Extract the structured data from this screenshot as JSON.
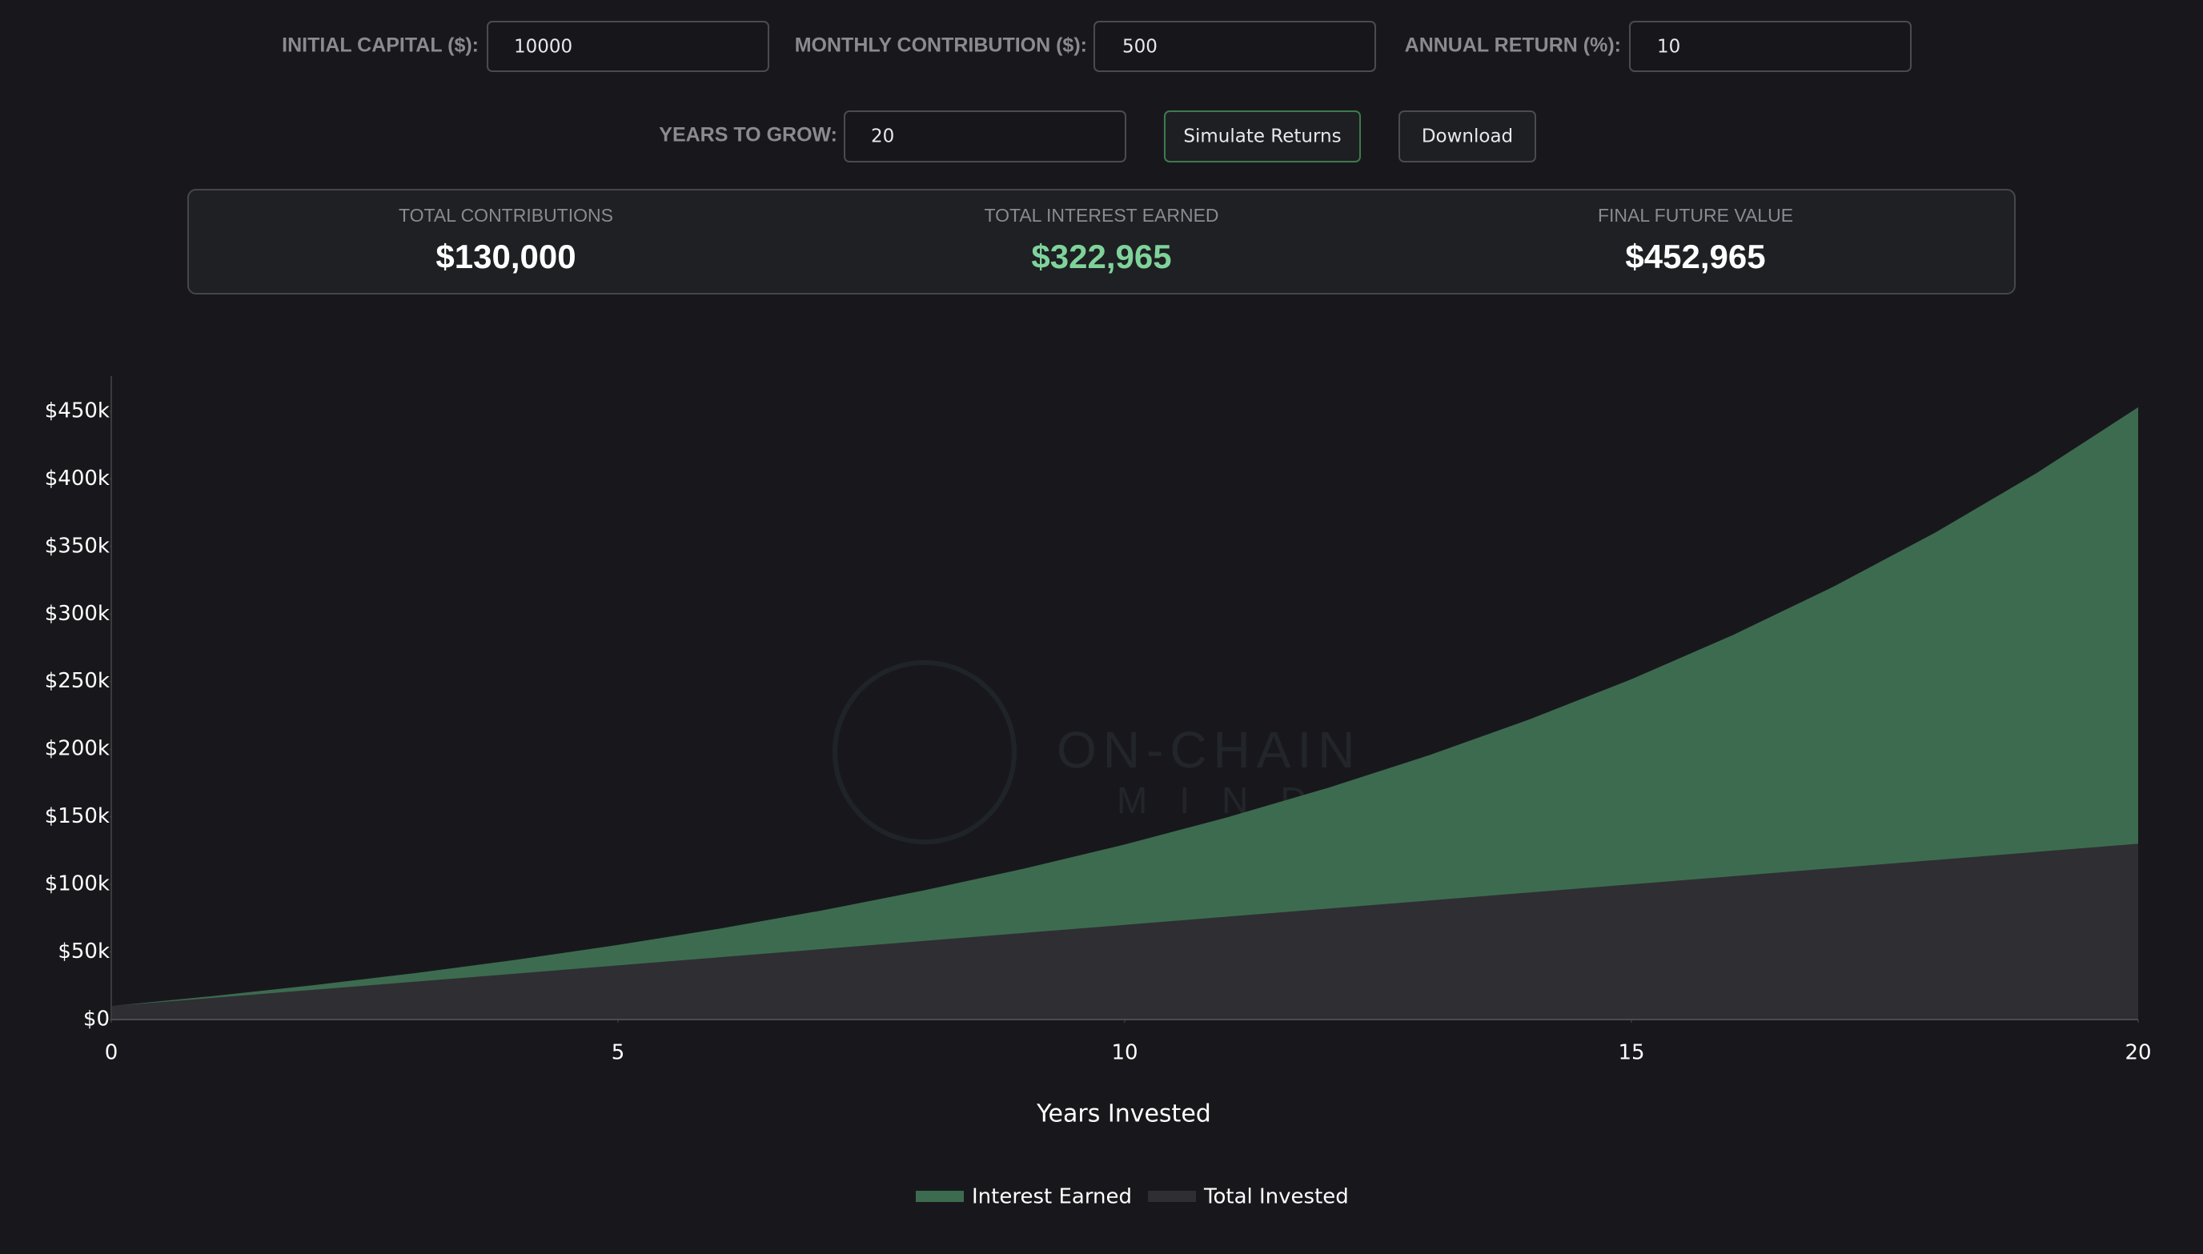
{
  "controls": {
    "fields": [
      {
        "label": "INITIAL CAPITAL ($):",
        "value": "10000"
      },
      {
        "label": "MONTHLY CONTRIBUTION ($):",
        "value": "500"
      },
      {
        "label": "ANNUAL RETURN (%):",
        "value": "10"
      },
      {
        "label": "YEARS TO GROW:",
        "value": "20"
      }
    ],
    "buttons": [
      "Simulate Returns",
      "Download"
    ]
  },
  "summary": [
    {
      "label": "TOTAL CONTRIBUTIONS",
      "value": "$130,000"
    },
    {
      "label": "TOTAL INTEREST EARNED",
      "value": "$322,965"
    },
    {
      "label": "FINAL FUTURE VALUE",
      "value": "$452,965"
    }
  ],
  "watermark": [
    "ON-CHAIN",
    "MIND"
  ],
  "chart_data": {
    "type": "stacked_area",
    "x": [
      0,
      1,
      2,
      3,
      4,
      5,
      6,
      7,
      8,
      9,
      10,
      11,
      12,
      13,
      14,
      15,
      16,
      17,
      18,
      19,
      20
    ],
    "series": [
      {
        "name": "Interest Earned",
        "color": "#3d6b50",
        "values": [
          0,
          1330,
          3427,
          6373,
          10255,
          15172,
          21231,
          28554,
          37273,
          47532,
          59492,
          73335,
          89256,
          107471,
          128221,
          151774,
          178420,
          208485,
          242327,
          280339,
          322965
        ]
      },
      {
        "name": "Total Invested",
        "color": "#2f2e33",
        "values": [
          10000,
          16000,
          22000,
          28000,
          34000,
          40000,
          46000,
          52000,
          58000,
          64000,
          70000,
          76000,
          82000,
          88000,
          94000,
          100000,
          106000,
          112000,
          118000,
          124000,
          130000
        ]
      }
    ],
    "xlabel": "Years Invested",
    "xlim": [
      0,
      20
    ],
    "xticks": [
      0,
      5,
      10,
      15,
      20
    ],
    "ylim": [
      0,
      476000
    ],
    "yticks": [
      {
        "value": 0,
        "label": "$0"
      },
      {
        "value": 50000,
        "label": "$50k"
      },
      {
        "value": 100000,
        "label": "$100k"
      },
      {
        "value": 150000,
        "label": "$150k"
      },
      {
        "value": 200000,
        "label": "$200k"
      },
      {
        "value": 250000,
        "label": "$250k"
      },
      {
        "value": 300000,
        "label": "$300k"
      },
      {
        "value": 350000,
        "label": "$350k"
      },
      {
        "value": 400000,
        "label": "$400k"
      },
      {
        "value": 450000,
        "label": "$450k"
      }
    ],
    "legend": "bottom"
  }
}
